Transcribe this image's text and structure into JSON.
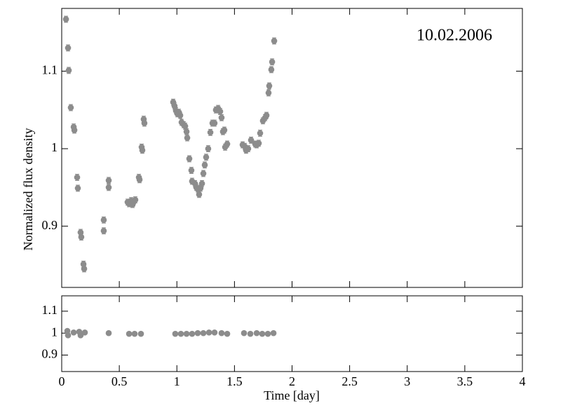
{
  "chart_data": [
    {
      "type": "scatter",
      "annotation": "10.02.2006",
      "y_label": "Normalized flux density",
      "color": "#8c8c8c",
      "error": 0.004,
      "xlim": [
        0,
        4
      ],
      "xticks": [
        0,
        0.5,
        1,
        1.5,
        2,
        2.5,
        3,
        3.5,
        4
      ],
      "ylim": [
        0.821,
        1.181
      ],
      "yticks": [
        0.9,
        1,
        1.1
      ],
      "x": [
        0.037,
        0.055,
        0.061,
        0.079,
        0.104,
        0.11,
        0.134,
        0.14,
        0.164,
        0.17,
        0.189,
        0.195,
        0.365,
        0.365,
        0.408,
        0.408,
        0.572,
        0.585,
        0.603,
        0.615,
        0.621,
        0.639,
        0.67,
        0.676,
        0.694,
        0.7,
        0.712,
        0.718,
        0.968,
        0.98,
        0.992,
        1.005,
        1.017,
        1.029,
        1.041,
        1.059,
        1.072,
        1.084,
        1.09,
        1.108,
        1.126,
        1.132,
        1.157,
        1.169,
        1.181,
        1.193,
        1.205,
        1.218,
        1.23,
        1.242,
        1.254,
        1.272,
        1.291,
        1.309,
        1.327,
        1.339,
        1.358,
        1.376,
        1.388,
        1.4,
        1.412,
        1.419,
        1.437,
        1.571,
        1.589,
        1.601,
        1.619,
        1.644,
        1.68,
        1.693,
        1.711,
        1.723,
        1.747,
        1.766,
        1.778,
        1.796,
        1.802,
        1.82,
        1.827,
        1.845
      ],
      "values": [
        1.167,
        1.13,
        1.101,
        1.053,
        1.028,
        1.024,
        0.963,
        0.949,
        0.892,
        0.886,
        0.851,
        0.845,
        0.908,
        0.894,
        0.959,
        0.95,
        0.931,
        0.929,
        0.933,
        0.928,
        0.93,
        0.934,
        0.963,
        0.96,
        1.002,
        0.998,
        1.038,
        1.033,
        1.06,
        1.055,
        1.049,
        1.045,
        1.047,
        1.043,
        1.034,
        1.031,
        1.029,
        1.022,
        1.014,
        0.987,
        0.972,
        0.958,
        0.955,
        0.95,
        0.948,
        0.941,
        0.949,
        0.955,
        0.968,
        0.979,
        0.989,
        1.0,
        1.021,
        1.033,
        1.033,
        1.05,
        1.052,
        1.048,
        1.04,
        1.022,
        1.024,
        1.002,
        1.006,
        1.005,
        1.003,
        0.998,
        1.0,
        1.011,
        1.006,
        1.005,
        1.007,
        1.02,
        1.036,
        1.04,
        1.043,
        1.072,
        1.081,
        1.102,
        1.112,
        1.139
      ]
    },
    {
      "type": "scatter",
      "x_label": "Time [day]",
      "color": "#8c8c8c",
      "xlim": [
        0,
        4
      ],
      "xticks": [
        0,
        0.5,
        1,
        1.5,
        2,
        2.5,
        3,
        3.5,
        4
      ],
      "ylim": [
        0.825,
        1.17
      ],
      "yticks": [
        0.9,
        1,
        1.1
      ],
      "x": [
        0.049,
        0.055,
        0.104,
        0.152,
        0.164,
        0.201,
        0.408,
        0.585,
        0.633,
        0.688,
        0.986,
        1.035,
        1.084,
        1.132,
        1.181,
        1.23,
        1.279,
        1.327,
        1.388,
        1.437,
        1.583,
        1.638,
        1.693,
        1.741,
        1.79,
        1.839
      ],
      "values": [
        1.01,
        0.99,
        1.003,
        1.006,
        0.99,
        1.003,
        1.0,
        0.997,
        0.997,
        0.997,
        0.997,
        0.997,
        0.997,
        0.997,
        1.0,
        1.0,
        1.003,
        1.003,
        1.0,
        0.997,
        1.0,
        0.997,
        1.0,
        0.997,
        0.997,
        1.0
      ]
    }
  ]
}
